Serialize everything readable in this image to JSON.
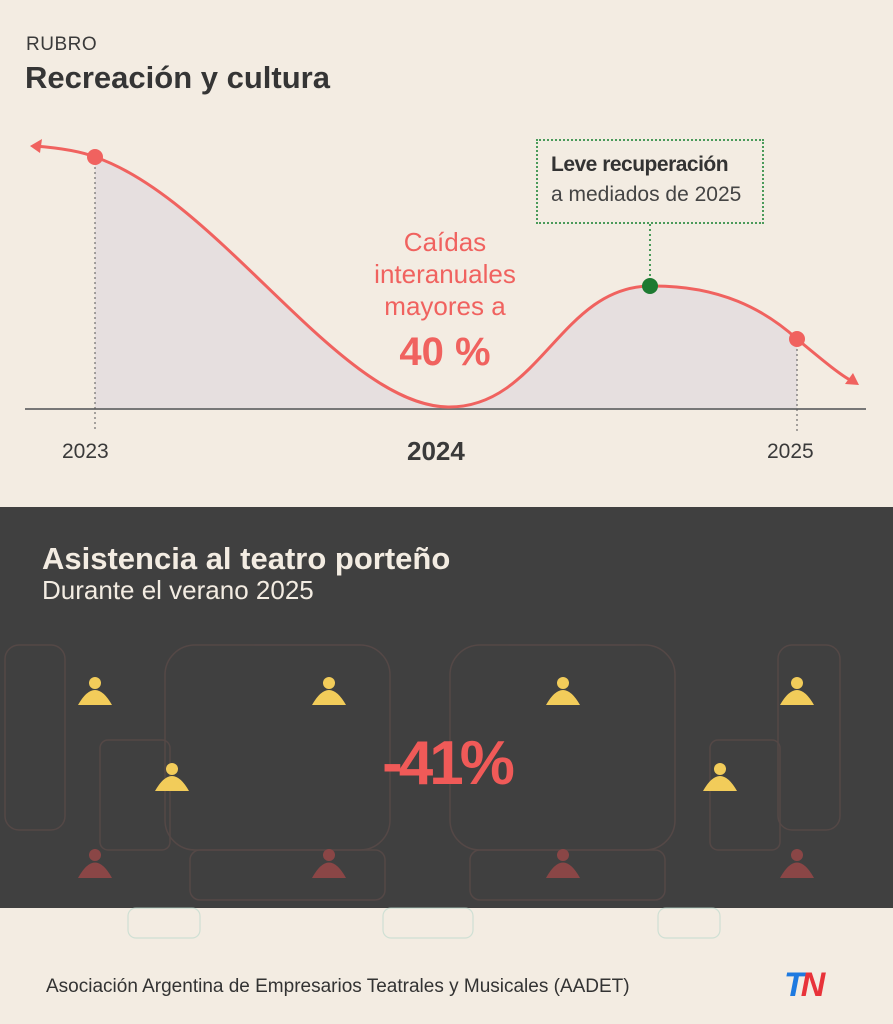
{
  "header": {
    "kicker": "RUBRO",
    "title": "Recreación y cultura"
  },
  "curve": {
    "x_labels": [
      "2023",
      "2024",
      "2025"
    ],
    "annotation": {
      "title": "Leve recuperación",
      "subtitle": "a mediados de 2025"
    },
    "callout_lines": [
      "Caídas",
      "interanuales",
      "mayores a"
    ],
    "callout_value": "40 %",
    "colors": {
      "line": "#f0625f",
      "highlight": "#1e7a32",
      "fill": "#e6dfdf"
    }
  },
  "theater": {
    "title": "Asistencia al teatro porteño",
    "subtitle": "Durante el verano 2025",
    "change": "-41%",
    "colors": {
      "present": "#f2cc5a",
      "absent": "#8a4646",
      "background": "#404040"
    }
  },
  "footer": {
    "source": "Asociación Argentina de Empresarios Teatrales y Musicales (AADET)",
    "logo": "TN"
  }
}
